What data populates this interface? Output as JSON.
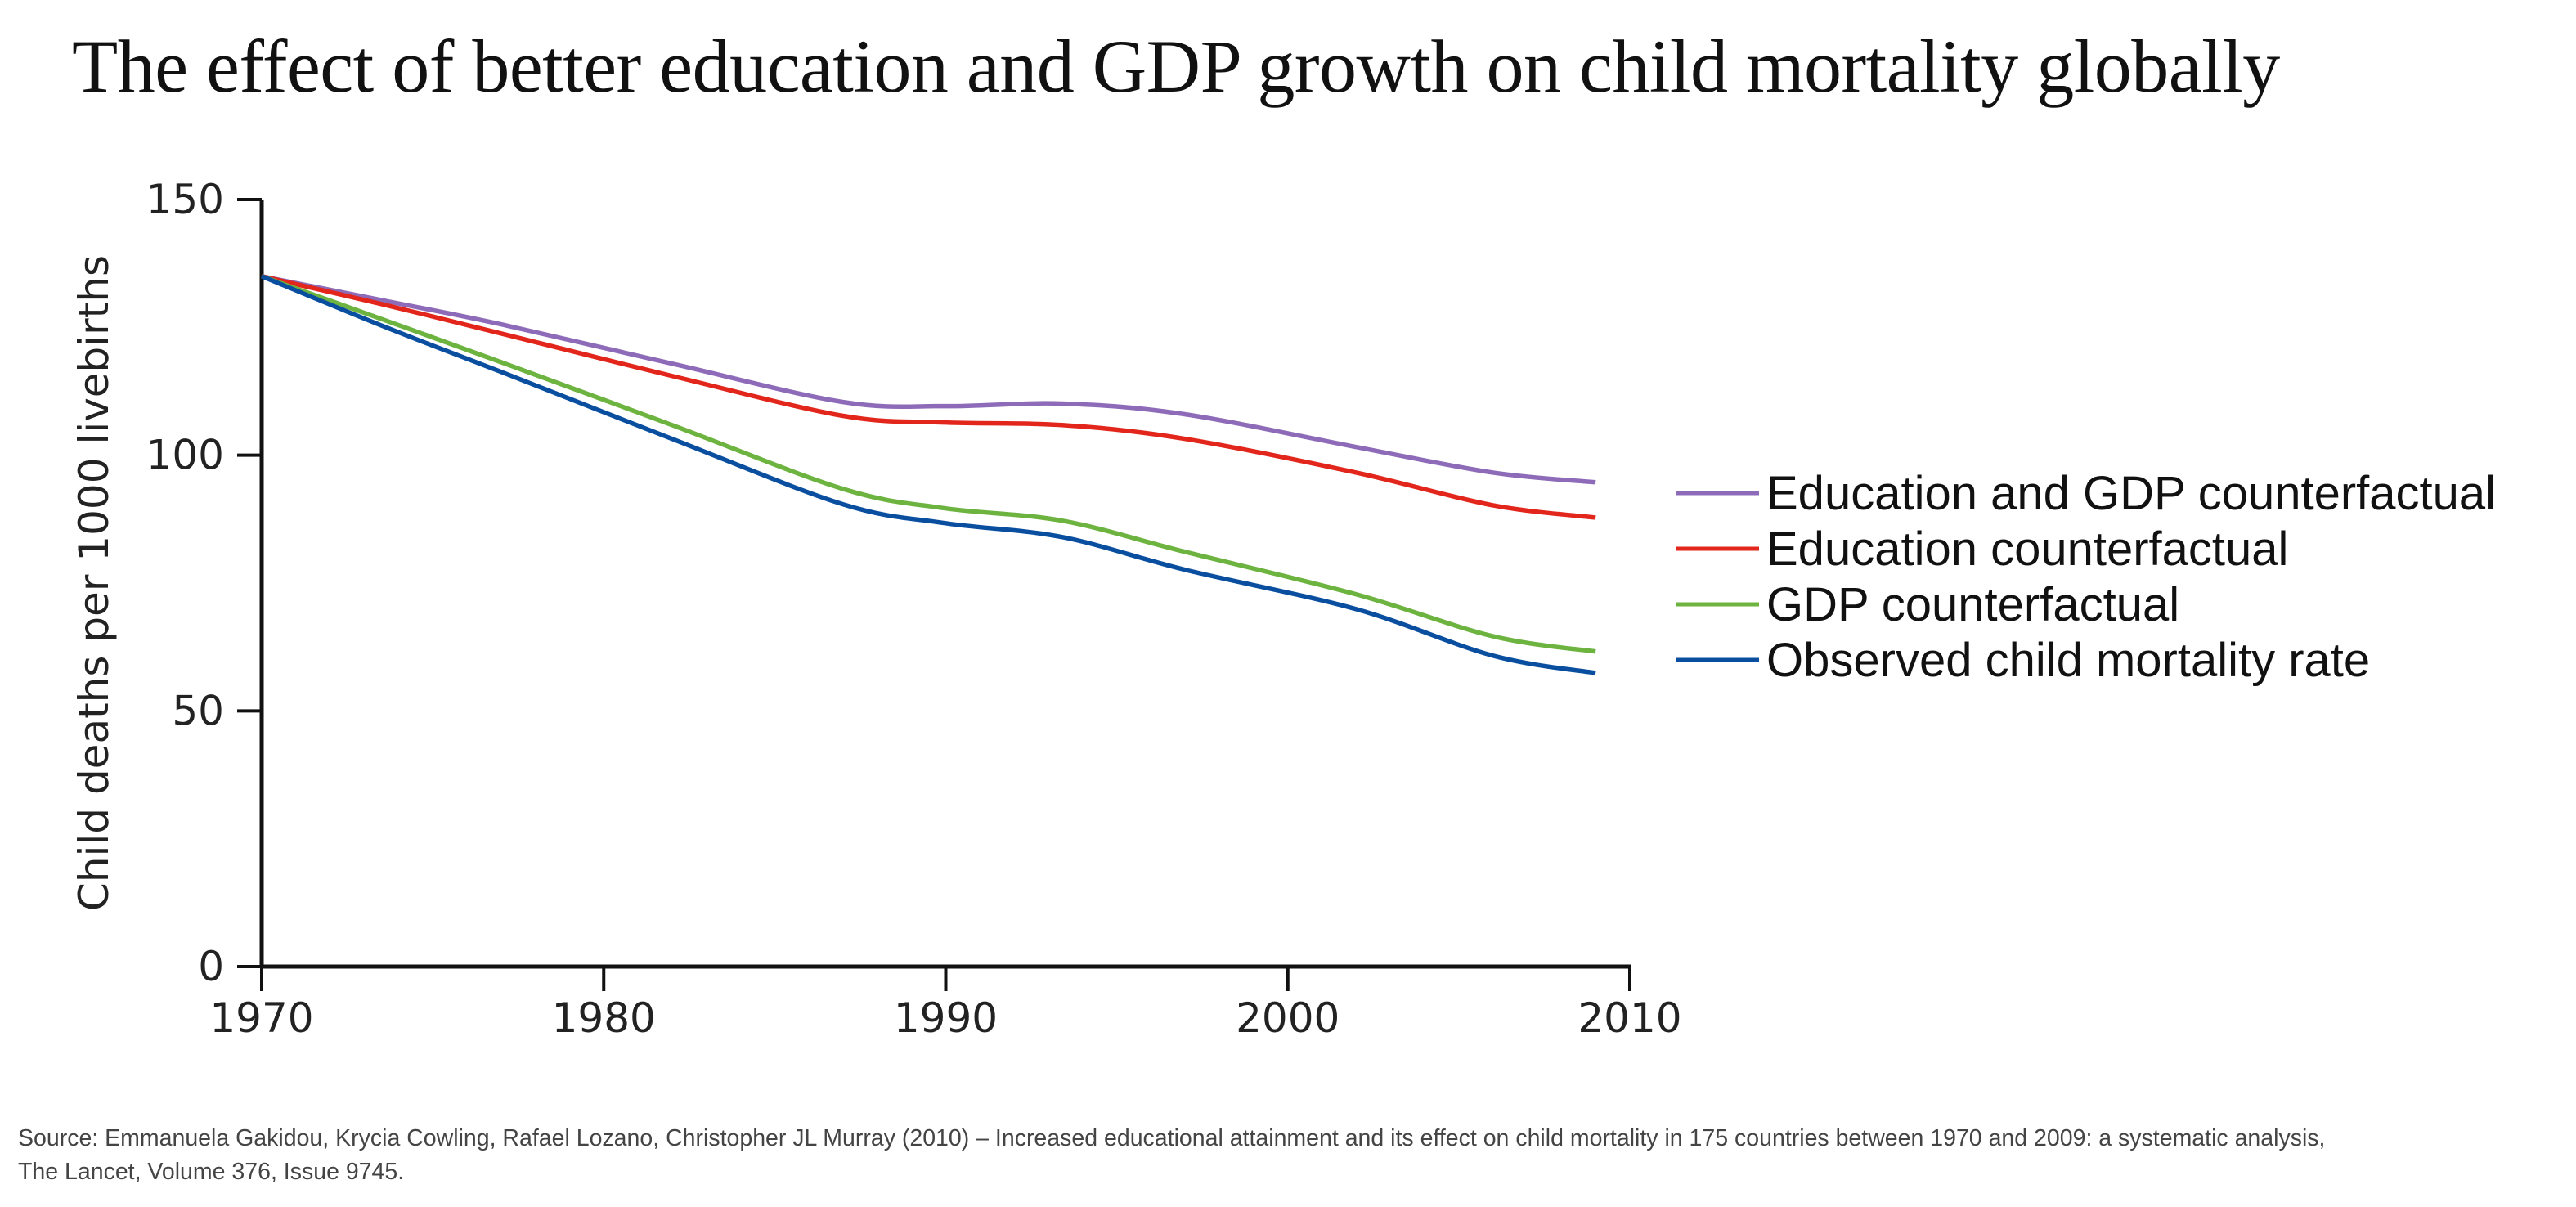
{
  "title": "The effect of better education and GDP growth on child mortality globally",
  "source_line1": "Source: Emmanuela Gakidou, Krycia Cowling, Rafael Lozano, Christopher JL Murray (2010) – Increased educational attainment and its effect on child mortality in 175 countries between 1970 and 2009: a systematic analysis,",
  "source_line2": "The Lancet, Volume 376, Issue 9745.",
  "chart_data": {
    "type": "line",
    "title": "The effect of better education and GDP growth on child mortality globally",
    "xlabel": "",
    "ylabel": "Child deaths per 1000 livebirths",
    "xlim": [
      1970,
      2010
    ],
    "ylim": [
      0,
      150
    ],
    "xticks": [
      1970,
      1980,
      1990,
      2000,
      2010
    ],
    "yticks": [
      0,
      50,
      100,
      150
    ],
    "grid": false,
    "legend_position": "right",
    "x": [
      1970,
      1973.6,
      1977,
      1982,
      1987,
      1990,
      1993.4,
      1997,
      2002,
      2006,
      2009
    ],
    "series": [
      {
        "name": "Education and GDP counterfactual",
        "color": "#8e6bb8",
        "values": [
          135,
          130.2,
          125.6,
          117.9,
          110.4,
          109.6,
          110.1,
          108.0,
          101.6,
          96.6,
          94.7
        ]
      },
      {
        "name": "Education counterfactual",
        "color": "#e2261c",
        "values": [
          135,
          129.4,
          123.8,
          115.5,
          107.7,
          106.4,
          105.9,
          103.2,
          96.6,
          90.2,
          87.8
        ]
      },
      {
        "name": "GDP counterfactual",
        "color": "#6db33f",
        "values": [
          135,
          126.4,
          118.2,
          105.9,
          93.4,
          89.6,
          87.2,
          81.1,
          72.8,
          64.6,
          61.6
        ]
      },
      {
        "name": "Observed child mortality rate",
        "color": "#0a4f9f",
        "values": [
          135,
          125.1,
          116.3,
          103.2,
          90.4,
          86.7,
          84.0,
          77.6,
          69.9,
          60.8,
          57.4
        ]
      }
    ]
  }
}
